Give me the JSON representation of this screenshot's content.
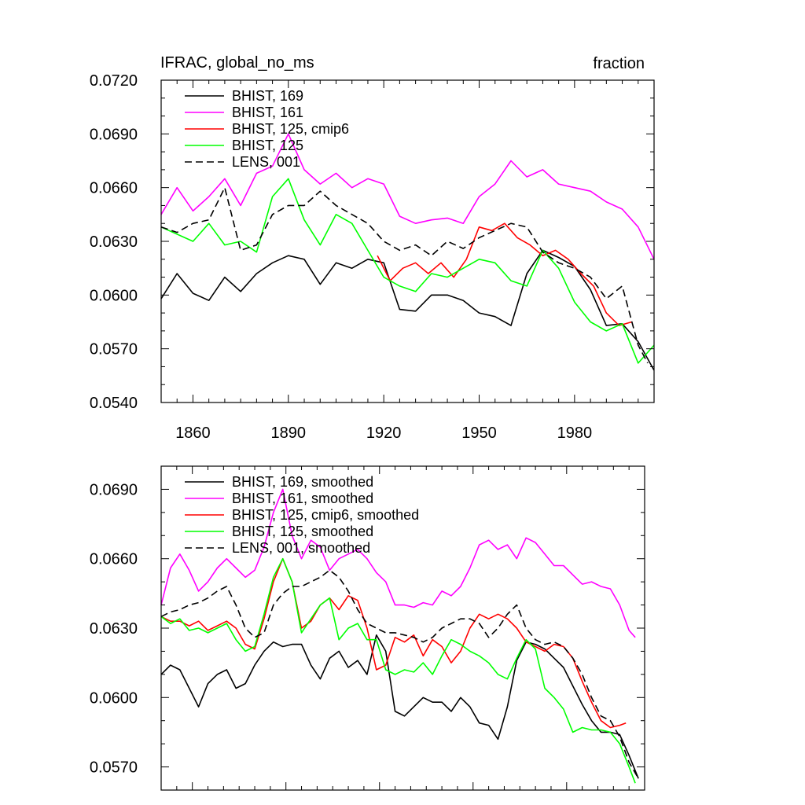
{
  "chart_data": [
    {
      "type": "line",
      "title_left": "IFRAC, global_no_ms",
      "title_right": "fraction",
      "xlim": [
        1850,
        2005
      ],
      "ylim": [
        0.054,
        0.072
      ],
      "xticks": [
        1860,
        1890,
        1920,
        1950,
        1980
      ],
      "xtick_labels": [
        "1860",
        "1890",
        "1920",
        "1950",
        "1980"
      ],
      "yticks": [
        0.054,
        0.057,
        0.06,
        0.063,
        0.066,
        0.069,
        0.072
      ],
      "ytick_labels": [
        "0.0540",
        "0.0570",
        "0.0600",
        "0.0630",
        "0.0660",
        "0.0690",
        "0.0720"
      ],
      "legend_position": "top-left",
      "series": [
        {
          "name": "BHIST, 169",
          "color": "#000000",
          "dash": "solid",
          "x": [
            1850,
            1855,
            1860,
            1865,
            1870,
            1875,
            1880,
            1885,
            1890,
            1895,
            1900,
            1905,
            1910,
            1915,
            1920,
            1925,
            1930,
            1935,
            1940,
            1945,
            1950,
            1955,
            1960,
            1965,
            1970,
            1975,
            1980,
            1985,
            1990,
            1995,
            2000,
            2005
          ],
          "y": [
            0.0598,
            0.0612,
            0.0601,
            0.0597,
            0.061,
            0.0602,
            0.0612,
            0.0618,
            0.0622,
            0.062,
            0.0606,
            0.0618,
            0.0615,
            0.062,
            0.0618,
            0.0592,
            0.0591,
            0.06,
            0.06,
            0.0597,
            0.059,
            0.0588,
            0.0583,
            0.0612,
            0.0625,
            0.0621,
            0.0616,
            0.0603,
            0.0583,
            0.0584,
            0.0574,
            0.0558
          ]
        },
        {
          "name": "BHIST, 161",
          "color": "#ff00ff",
          "dash": "solid",
          "x": [
            1850,
            1855,
            1860,
            1865,
            1870,
            1875,
            1880,
            1885,
            1890,
            1895,
            1900,
            1905,
            1910,
            1915,
            1920,
            1925,
            1930,
            1935,
            1940,
            1945,
            1950,
            1955,
            1960,
            1965,
            1970,
            1975,
            1980,
            1985,
            1990,
            1995,
            2000,
            2005
          ],
          "y": [
            0.0645,
            0.066,
            0.0647,
            0.0655,
            0.0665,
            0.065,
            0.0668,
            0.0672,
            0.069,
            0.067,
            0.0662,
            0.0668,
            0.066,
            0.0665,
            0.0662,
            0.0644,
            0.064,
            0.0642,
            0.0643,
            0.064,
            0.0655,
            0.0662,
            0.0675,
            0.0666,
            0.067,
            0.0662,
            0.066,
            0.0658,
            0.0652,
            0.0648,
            0.0638,
            0.062
          ]
        },
        {
          "name": "BHIST, 125, cmip6",
          "color": "#ff0000",
          "dash": "solid",
          "x": [
            1918,
            1922,
            1926,
            1930,
            1934,
            1938,
            1942,
            1946,
            1950,
            1954,
            1958,
            1962,
            1966,
            1970,
            1974,
            1978,
            1982,
            1986,
            1990,
            1994,
            1998
          ],
          "y": [
            0.0622,
            0.0608,
            0.0615,
            0.0618,
            0.0612,
            0.0618,
            0.061,
            0.062,
            0.0638,
            0.0636,
            0.064,
            0.0632,
            0.0628,
            0.0622,
            0.0625,
            0.062,
            0.0612,
            0.0605,
            0.059,
            0.0583,
            0.0585
          ]
        },
        {
          "name": "BHIST, 125",
          "color": "#00ff00",
          "dash": "solid",
          "x": [
            1850,
            1855,
            1860,
            1865,
            1870,
            1875,
            1880,
            1885,
            1890,
            1895,
            1900,
            1905,
            1910,
            1915,
            1920,
            1925,
            1930,
            1935,
            1940,
            1945,
            1950,
            1955,
            1960,
            1965,
            1970,
            1975,
            1980,
            1985,
            1990,
            1995,
            2000,
            2005
          ],
          "y": [
            0.0638,
            0.0634,
            0.063,
            0.064,
            0.0628,
            0.063,
            0.0624,
            0.0655,
            0.0665,
            0.0642,
            0.0628,
            0.0645,
            0.064,
            0.0625,
            0.061,
            0.0605,
            0.0602,
            0.0612,
            0.061,
            0.0615,
            0.062,
            0.0618,
            0.0608,
            0.0605,
            0.0625,
            0.0615,
            0.0596,
            0.0585,
            0.058,
            0.0584,
            0.0562,
            0.0572
          ]
        },
        {
          "name": "LENS, 001",
          "color": "#000000",
          "dash": "dashed",
          "x": [
            1850,
            1855,
            1860,
            1865,
            1870,
            1875,
            1880,
            1885,
            1890,
            1895,
            1900,
            1905,
            1910,
            1915,
            1920,
            1925,
            1930,
            1935,
            1940,
            1945,
            1950,
            1955,
            1960,
            1965,
            1970,
            1975,
            1980,
            1985,
            1990,
            1995,
            2000,
            2003
          ],
          "y": [
            0.0638,
            0.0635,
            0.064,
            0.0642,
            0.066,
            0.0625,
            0.0628,
            0.0645,
            0.065,
            0.065,
            0.0658,
            0.065,
            0.0645,
            0.064,
            0.063,
            0.0625,
            0.0628,
            0.0622,
            0.063,
            0.0626,
            0.0632,
            0.0636,
            0.064,
            0.0638,
            0.0624,
            0.0618,
            0.0615,
            0.061,
            0.0598,
            0.0605,
            0.0572,
            0.0562
          ]
        }
      ]
    },
    {
      "type": "line",
      "xlim": [
        1850,
        2005
      ],
      "ylim": [
        0.056,
        0.07
      ],
      "xticks": [
        1860,
        1890,
        1920,
        1950,
        1980
      ],
      "yticks": [
        0.057,
        0.06,
        0.063,
        0.066,
        0.069
      ],
      "ytick_labels": [
        "0.0570",
        "0.0600",
        "0.0630",
        "0.0660",
        "0.0690"
      ],
      "legend_position": "top-left",
      "series": [
        {
          "name": "BHIST, 169, smoothed",
          "color": "#000000",
          "dash": "solid",
          "x": [
            1850,
            1853,
            1856,
            1859,
            1862,
            1865,
            1868,
            1871,
            1874,
            1877,
            1880,
            1883,
            1886,
            1889,
            1892,
            1895,
            1898,
            1901,
            1904,
            1907,
            1910,
            1913,
            1916,
            1919,
            1922,
            1925,
            1928,
            1931,
            1934,
            1937,
            1940,
            1943,
            1946,
            1949,
            1952,
            1955,
            1958,
            1961,
            1964,
            1967,
            1970,
            1973,
            1976,
            1979,
            1982,
            1985,
            1988,
            1991,
            1994,
            1997,
            2000,
            2003
          ],
          "y": [
            0.061,
            0.0614,
            0.0612,
            0.0604,
            0.0596,
            0.0606,
            0.061,
            0.0612,
            0.0604,
            0.0606,
            0.0614,
            0.062,
            0.0624,
            0.0622,
            0.0623,
            0.0623,
            0.0614,
            0.0608,
            0.0617,
            0.062,
            0.0613,
            0.0616,
            0.061,
            0.0627,
            0.062,
            0.0594,
            0.0592,
            0.0596,
            0.06,
            0.0598,
            0.0598,
            0.0594,
            0.06,
            0.0596,
            0.0589,
            0.0588,
            0.0582,
            0.0596,
            0.0616,
            0.0624,
            0.0623,
            0.0621,
            0.0617,
            0.0613,
            0.0605,
            0.0597,
            0.059,
            0.0585,
            0.0585,
            0.0584,
            0.0575,
            0.0565
          ]
        },
        {
          "name": "BHIST, 161, smoothed",
          "color": "#ff00ff",
          "dash": "solid",
          "x": [
            1850,
            1853,
            1856,
            1859,
            1862,
            1865,
            1868,
            1871,
            1874,
            1877,
            1880,
            1883,
            1886,
            1889,
            1892,
            1895,
            1898,
            1901,
            1904,
            1907,
            1910,
            1913,
            1916,
            1919,
            1922,
            1925,
            1928,
            1931,
            1934,
            1937,
            1940,
            1943,
            1946,
            1949,
            1952,
            1955,
            1958,
            1961,
            1964,
            1967,
            1970,
            1973,
            1976,
            1979,
            1982,
            1985,
            1988,
            1991,
            1994,
            1997,
            2000,
            2002
          ],
          "y": [
            0.064,
            0.0656,
            0.0662,
            0.0655,
            0.0646,
            0.065,
            0.0656,
            0.066,
            0.0656,
            0.0652,
            0.0655,
            0.0665,
            0.068,
            0.069,
            0.067,
            0.066,
            0.0668,
            0.0665,
            0.0655,
            0.066,
            0.0662,
            0.0664,
            0.066,
            0.0654,
            0.065,
            0.064,
            0.064,
            0.0639,
            0.0641,
            0.064,
            0.0646,
            0.0644,
            0.0648,
            0.0656,
            0.0666,
            0.0668,
            0.0664,
            0.0666,
            0.066,
            0.0669,
            0.0667,
            0.0662,
            0.0657,
            0.0657,
            0.0653,
            0.0649,
            0.065,
            0.0648,
            0.0647,
            0.064,
            0.0629,
            0.0626
          ]
        },
        {
          "name": "BHIST, 125, cmip6, smoothed",
          "color": "#ff0000",
          "dash": "solid",
          "x": [
            1850,
            1853,
            1856,
            1859,
            1862,
            1865,
            1868,
            1871,
            1874,
            1877,
            1880,
            1883,
            1886,
            1889,
            1892,
            1895,
            1898,
            1901,
            1904,
            1907,
            1910,
            1913,
            1916,
            1919,
            1922,
            1925,
            1928,
            1931,
            1934,
            1937,
            1940,
            1943,
            1946,
            1949,
            1952,
            1955,
            1958,
            1961,
            1964,
            1967,
            1970,
            1973,
            1976,
            1979,
            1982,
            1985,
            1988,
            1991,
            1994,
            1997,
            1999
          ],
          "y": [
            0.0635,
            0.0633,
            0.0633,
            0.0631,
            0.0633,
            0.0629,
            0.0631,
            0.0633,
            0.063,
            0.0623,
            0.0621,
            0.0634,
            0.065,
            0.066,
            0.065,
            0.063,
            0.0633,
            0.064,
            0.0643,
            0.0638,
            0.0644,
            0.0642,
            0.063,
            0.0612,
            0.0614,
            0.0626,
            0.0624,
            0.0627,
            0.0618,
            0.0625,
            0.0622,
            0.0615,
            0.062,
            0.063,
            0.0636,
            0.0634,
            0.0636,
            0.0634,
            0.063,
            0.0624,
            0.0622,
            0.062,
            0.0623,
            0.0622,
            0.0617,
            0.0607,
            0.0598,
            0.059,
            0.0587,
            0.0588,
            0.0589
          ]
        },
        {
          "name": "BHIST, 125, smoothed",
          "color": "#00ff00",
          "dash": "solid",
          "x": [
            1850,
            1853,
            1856,
            1859,
            1862,
            1865,
            1868,
            1871,
            1874,
            1877,
            1880,
            1883,
            1886,
            1889,
            1892,
            1895,
            1898,
            1901,
            1904,
            1907,
            1910,
            1913,
            1916,
            1919,
            1922,
            1925,
            1928,
            1931,
            1934,
            1937,
            1940,
            1943,
            1946,
            1949,
            1952,
            1955,
            1958,
            1961,
            1964,
            1967,
            1970,
            1973,
            1976,
            1979,
            1982,
            1985,
            1988,
            1991,
            1994,
            1997,
            2000,
            2002
          ],
          "y": [
            0.0635,
            0.0632,
            0.0634,
            0.0629,
            0.063,
            0.0628,
            0.063,
            0.0632,
            0.0625,
            0.062,
            0.0622,
            0.0636,
            0.0652,
            0.066,
            0.065,
            0.0628,
            0.0634,
            0.064,
            0.0643,
            0.0625,
            0.063,
            0.0632,
            0.0625,
            0.0625,
            0.0612,
            0.061,
            0.0612,
            0.0611,
            0.0615,
            0.061,
            0.0618,
            0.0625,
            0.0623,
            0.062,
            0.0618,
            0.0615,
            0.061,
            0.0608,
            0.0617,
            0.0625,
            0.0621,
            0.0604,
            0.06,
            0.0595,
            0.0585,
            0.0587,
            0.0586,
            0.0586,
            0.0585,
            0.058,
            0.057,
            0.0563
          ]
        },
        {
          "name": "LENS, 001, smoothed",
          "color": "#000000",
          "dash": "dashed",
          "x": [
            1850,
            1853,
            1856,
            1859,
            1862,
            1865,
            1868,
            1871,
            1874,
            1877,
            1880,
            1883,
            1886,
            1889,
            1892,
            1895,
            1898,
            1901,
            1904,
            1907,
            1910,
            1913,
            1916,
            1919,
            1922,
            1925,
            1928,
            1931,
            1934,
            1937,
            1940,
            1943,
            1946,
            1949,
            1952,
            1955,
            1958,
            1961,
            1964,
            1967,
            1970,
            1973,
            1976,
            1979,
            1982,
            1985,
            1988,
            1991,
            1994,
            1997,
            2000,
            2003
          ],
          "y": [
            0.0635,
            0.0637,
            0.0638,
            0.064,
            0.0641,
            0.0643,
            0.0646,
            0.0648,
            0.064,
            0.063,
            0.0626,
            0.0628,
            0.064,
            0.0645,
            0.0648,
            0.0648,
            0.065,
            0.0652,
            0.0655,
            0.0652,
            0.0646,
            0.0638,
            0.0632,
            0.063,
            0.0628,
            0.0628,
            0.0627,
            0.0626,
            0.0624,
            0.0626,
            0.063,
            0.0632,
            0.0634,
            0.0634,
            0.0632,
            0.0626,
            0.063,
            0.0636,
            0.064,
            0.063,
            0.0625,
            0.0623,
            0.0624,
            0.0622,
            0.0617,
            0.061,
            0.06,
            0.0592,
            0.059,
            0.0583,
            0.0572,
            0.0565
          ]
        }
      ]
    }
  ]
}
